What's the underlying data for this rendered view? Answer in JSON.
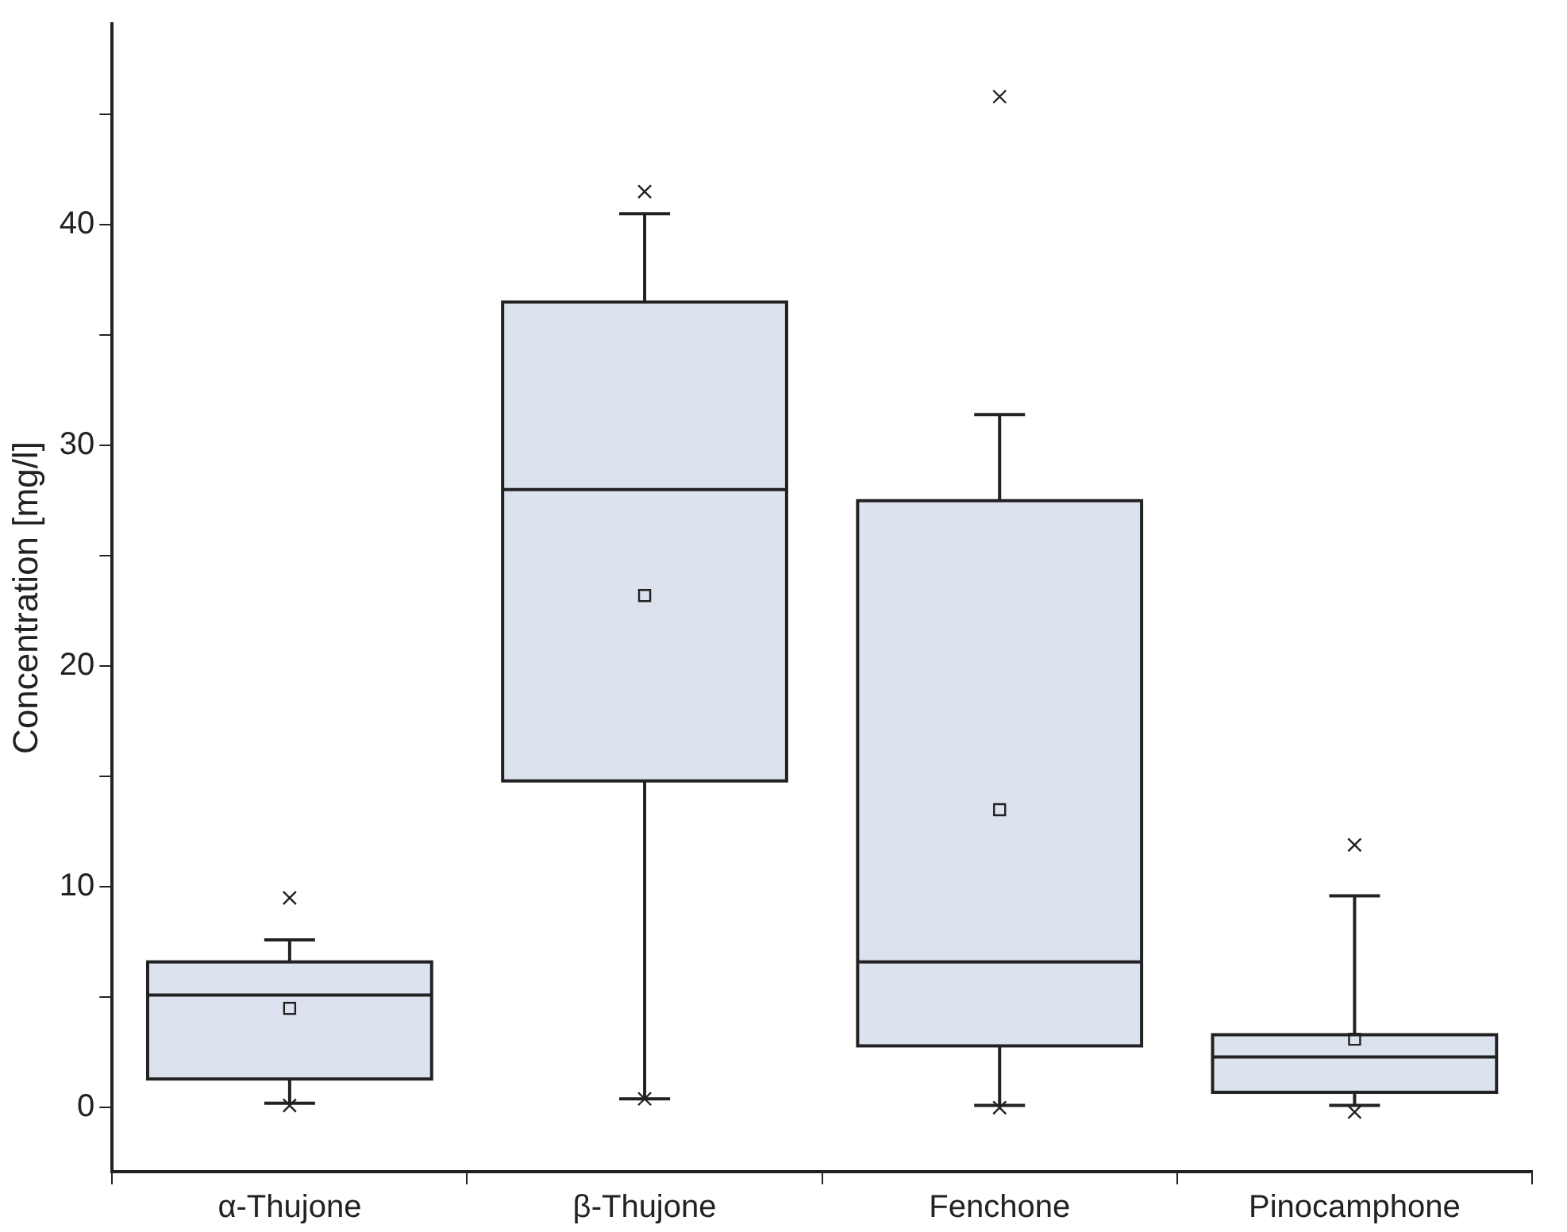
{
  "chart_data": {
    "type": "box",
    "ylabel": "Concentration [mg/l]",
    "categories": [
      "α-Thujone",
      "β-Thujone",
      "Fenchone",
      "Pinocamphone"
    ],
    "color": "#dde3ee",
    "boxes": [
      {
        "low": 0.2,
        "q1": 1.3,
        "median": 5.1,
        "q3": 6.6,
        "high": 7.6,
        "mean": 4.5,
        "outliers": [
          9.5,
          0.1
        ]
      },
      {
        "low": 0.4,
        "q1": 14.8,
        "median": 28.0,
        "q3": 36.5,
        "high": 40.5,
        "mean": 23.2,
        "outliers": [
          41.5,
          0.4
        ]
      },
      {
        "low": 0.1,
        "q1": 2.8,
        "median": 6.6,
        "q3": 27.5,
        "high": 31.4,
        "mean": 13.5,
        "outliers": [
          45.8,
          0.0
        ]
      },
      {
        "low": 0.1,
        "q1": 0.7,
        "median": 2.3,
        "q3": 3.3,
        "high": 9.6,
        "mean": 3.1,
        "outliers": [
          11.9,
          -0.2
        ]
      }
    ],
    "ylim": [
      -2.9,
      49.1
    ],
    "yticks": [
      0,
      {
        "value": 5,
        "label": null
      },
      10,
      {
        "value": 15,
        "label": null
      },
      20,
      {
        "value": 25,
        "label": null
      },
      30,
      {
        "value": 35,
        "label": null
      },
      40,
      {
        "value": 45,
        "label": null
      }
    ],
    "grid": false,
    "legend": false
  }
}
